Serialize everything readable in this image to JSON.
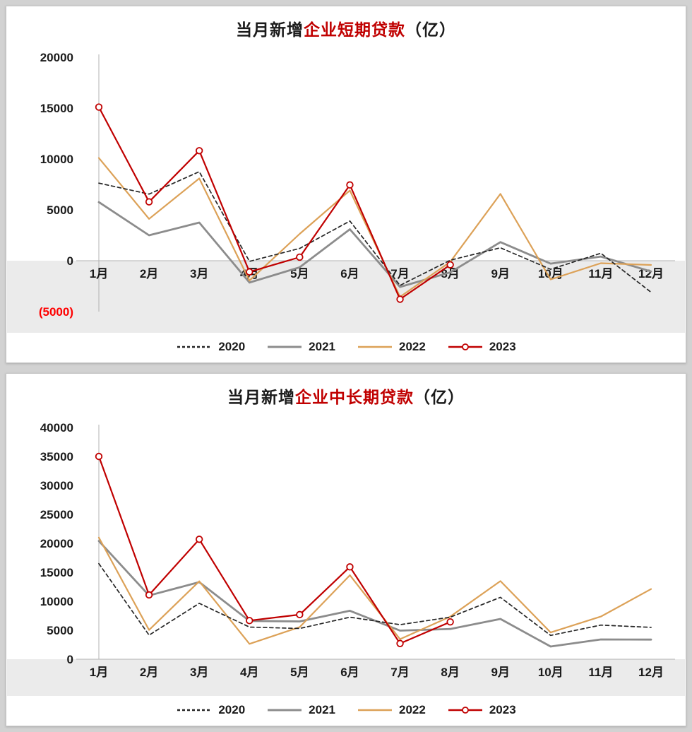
{
  "colors": {
    "series_2020": "#262626",
    "series_2021": "#8c8c8c",
    "series_2022": "#dca157",
    "series_2023": "#c00000",
    "title_highlight": "#c00000",
    "negative_tick": "#fe0000",
    "axis_line": "#b3b3b3",
    "below_zero_band": "#ebebeb",
    "page_background": "#d2d2d2"
  },
  "chart_data": [
    {
      "type": "line",
      "title_prefix": "当月新增",
      "title_highlight": "企业短期贷款",
      "title_suffix": "（亿）",
      "xlabel": "",
      "ylabel": "",
      "ylim": [
        -5000,
        20000
      ],
      "ytick_step": 5000,
      "ytick_labels": [
        "20000",
        "15000",
        "10000",
        "5000",
        "0",
        "(5000)"
      ],
      "grid": false,
      "legend_position": "bottom",
      "categories": [
        "1月",
        "2月",
        "3月",
        "4月",
        "5月",
        "6月",
        "7月",
        "8月",
        "9月",
        "10月",
        "11月",
        "12月"
      ],
      "series": [
        {
          "name": "2020",
          "style": "dashed",
          "color": "#262626",
          "values": [
            7625,
            6549,
            8752,
            -62,
            1211,
            3900,
            -2421,
            47,
            1274,
            -837,
            734,
            -3097
          ]
        },
        {
          "name": "2021",
          "style": "solid",
          "color": "#8c8c8c",
          "values": [
            5755,
            2497,
            3748,
            -2147,
            -644,
            3091,
            -2577,
            -1149,
            1826,
            -288,
            410,
            -1054
          ]
        },
        {
          "name": "2022",
          "style": "solid",
          "color": "#dca157",
          "values": [
            10100,
            4111,
            8089,
            -1948,
            2642,
            6906,
            -3546,
            -121,
            6567,
            -1843,
            -241,
            -416
          ]
        },
        {
          "name": "2023",
          "style": "marker",
          "color": "#c00000",
          "values": [
            15100,
            5785,
            10815,
            -1099,
            350,
            7449,
            -3785,
            -401,
            null,
            null,
            null,
            null
          ]
        }
      ]
    },
    {
      "type": "line",
      "title_prefix": "当月新增",
      "title_highlight": "企业中长期贷款",
      "title_suffix": "（亿）",
      "xlabel": "",
      "ylabel": "",
      "ylim": [
        0,
        40000
      ],
      "ytick_step": 5000,
      "ytick_labels": [
        "40000",
        "35000",
        "30000",
        "25000",
        "20000",
        "15000",
        "10000",
        "5000",
        "0"
      ],
      "grid": false,
      "legend_position": "bottom",
      "categories": [
        "1月",
        "2月",
        "3月",
        "4月",
        "5月",
        "6月",
        "7月",
        "8月",
        "9月",
        "10月",
        "11月",
        "12月"
      ],
      "series": [
        {
          "name": "2020",
          "style": "dashed",
          "color": "#262626",
          "values": [
            16500,
            4157,
            9643,
            5547,
            5305,
            7254,
            5968,
            7252,
            10680,
            4113,
            5887,
            5500
          ]
        },
        {
          "name": "2021",
          "style": "solid",
          "color": "#8c8c8c",
          "values": [
            20400,
            11000,
            13300,
            6605,
            6528,
            8367,
            4937,
            5215,
            6948,
            2190,
            3417,
            3393
          ]
        },
        {
          "name": "2022",
          "style": "solid",
          "color": "#dca157",
          "values": [
            21000,
            5052,
            13448,
            2652,
            5551,
            14497,
            3459,
            7353,
            13488,
            4623,
            7367,
            12110
          ]
        },
        {
          "name": "2023",
          "style": "marker",
          "color": "#c00000",
          "values": [
            35000,
            11100,
            20700,
            6669,
            7698,
            15933,
            2712,
            6444,
            null,
            null,
            null,
            null
          ]
        }
      ]
    }
  ]
}
